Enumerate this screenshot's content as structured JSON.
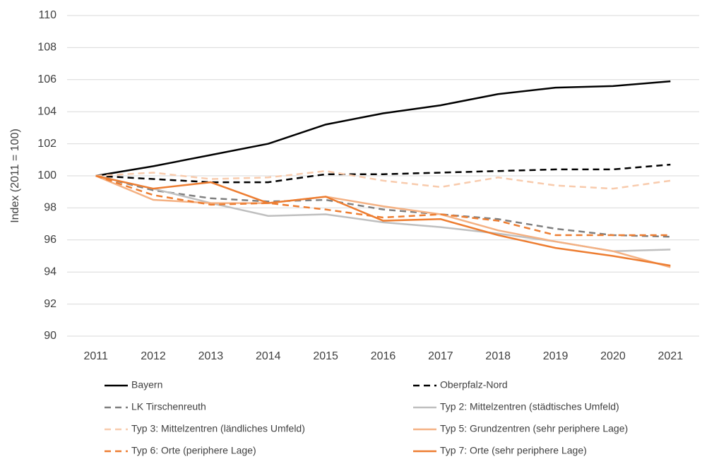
{
  "chart_data": {
    "type": "line",
    "y_label": "Index (2011 = 100)",
    "categories": [
      "2011",
      "2012",
      "2013",
      "2014",
      "2015",
      "2016",
      "2017",
      "2018",
      "2019",
      "2020",
      "2021"
    ],
    "ylim": [
      90,
      110
    ],
    "yticks": [
      90,
      92,
      94,
      96,
      98,
      100,
      102,
      104,
      106,
      108,
      110
    ],
    "grid": true,
    "series": [
      {
        "name": "Bayern",
        "color": "#000000",
        "dashed": false,
        "values": [
          100,
          100.6,
          101.3,
          102.0,
          103.2,
          103.9,
          104.4,
          105.1,
          105.5,
          105.6,
          105.9
        ]
      },
      {
        "name": "Oberpfalz-Nord",
        "color": "#000000",
        "dashed": true,
        "values": [
          100,
          99.8,
          99.6,
          99.6,
          100.1,
          100.1,
          100.2,
          100.3,
          100.4,
          100.4,
          100.7
        ]
      },
      {
        "name": "LK Tirschenreuth",
        "color": "#7f7f7f",
        "dashed": true,
        "values": [
          100,
          99.1,
          98.6,
          98.4,
          98.5,
          97.9,
          97.6,
          97.3,
          96.7,
          96.3,
          96.2
        ]
      },
      {
        "name": "Typ 2: Mittelzentren (städtisches Umfeld)",
        "color": "#bfbfbf",
        "dashed": false,
        "values": [
          100,
          99.2,
          98.3,
          97.5,
          97.6,
          97.1,
          96.8,
          96.4,
          95.9,
          95.3,
          95.4
        ]
      },
      {
        "name": "Typ 3: Mittelzentren (ländliches Umfeld)",
        "color": "#f8cbad",
        "dashed": true,
        "values": [
          100,
          100.2,
          99.8,
          99.9,
          100.3,
          99.7,
          99.3,
          99.9,
          99.4,
          99.2,
          99.7
        ]
      },
      {
        "name": "Typ 5: Grundzentren (sehr periphere Lage)",
        "color": "#f4b183",
        "dashed": false,
        "values": [
          100,
          98.5,
          98.3,
          98.3,
          98.7,
          98.1,
          97.6,
          96.6,
          95.9,
          95.3,
          94.3
        ]
      },
      {
        "name": "Typ 6: Orte (periphere Lage)",
        "color": "#ed7d31",
        "dashed": true,
        "values": [
          100,
          98.8,
          98.2,
          98.3,
          97.9,
          97.4,
          97.6,
          97.2,
          96.3,
          96.3,
          96.3
        ]
      },
      {
        "name": "Typ 7: Orte (sehr periphere Lage)",
        "color": "#ed7d31",
        "dashed": false,
        "values": [
          100,
          99.2,
          99.6,
          98.3,
          98.7,
          97.2,
          97.3,
          96.3,
          95.5,
          95.0,
          94.4
        ]
      }
    ]
  }
}
